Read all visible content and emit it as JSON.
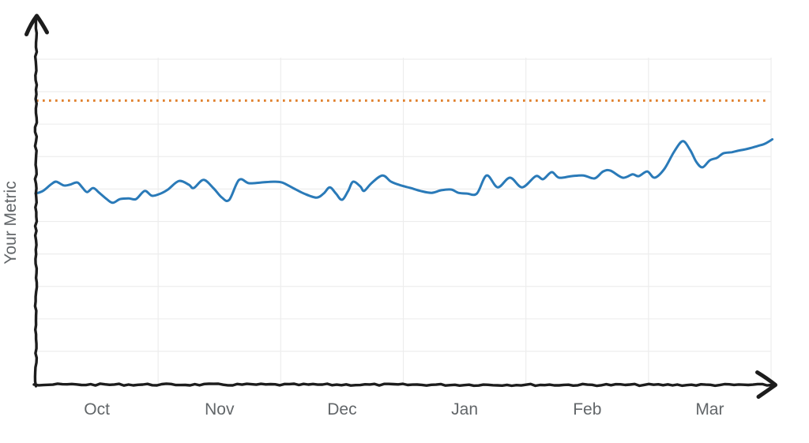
{
  "page": {
    "background": "#ffffff",
    "title": ""
  },
  "chart_data": {
    "type": "line",
    "title": "",
    "xlabel": "",
    "ylabel": "Your Metric",
    "x_tick_labels": [
      "Oct",
      "Nov",
      "Dec",
      "Jan",
      "Feb",
      "Mar"
    ],
    "x_unit": "month",
    "x_range_months": [
      0,
      6.06
    ],
    "ylim": [
      0,
      100
    ],
    "grid": true,
    "legend_position": "none",
    "axis_style": "hand-drawn black axes with arrowheads (top of y-axis, right of x-axis)",
    "colors": {
      "line": "#2a7ab8",
      "threshold": "#e0812e",
      "grid": "#ededed",
      "axis": "#1d1d1d",
      "labels": "#626669",
      "background": "#ffffff"
    },
    "threshold": {
      "name": "goal-line",
      "value": 77,
      "style": "dotted",
      "color": "#e0812e"
    },
    "series": [
      {
        "name": "Your Metric",
        "color": "#2a7ab8",
        "points": [
          [
            0.0,
            51.8
          ],
          [
            0.06,
            52.5
          ],
          [
            0.13,
            54.4
          ],
          [
            0.17,
            55.0
          ],
          [
            0.23,
            54.0
          ],
          [
            0.28,
            54.2
          ],
          [
            0.34,
            54.8
          ],
          [
            0.38,
            53.5
          ],
          [
            0.42,
            52.2
          ],
          [
            0.47,
            53.3
          ],
          [
            0.52,
            52.0
          ],
          [
            0.58,
            50.3
          ],
          [
            0.63,
            49.3
          ],
          [
            0.69,
            50.3
          ],
          [
            0.76,
            50.5
          ],
          [
            0.82,
            50.3
          ],
          [
            0.89,
            52.5
          ],
          [
            0.95,
            51.2
          ],
          [
            1.02,
            51.8
          ],
          [
            1.08,
            52.9
          ],
          [
            1.17,
            55.2
          ],
          [
            1.25,
            54.2
          ],
          [
            1.29,
            53.3
          ],
          [
            1.37,
            55.5
          ],
          [
            1.45,
            53.3
          ],
          [
            1.52,
            50.7
          ],
          [
            1.58,
            50.1
          ],
          [
            1.66,
            55.5
          ],
          [
            1.74,
            54.6
          ],
          [
            1.84,
            54.8
          ],
          [
            1.94,
            55.0
          ],
          [
            2.01,
            54.8
          ],
          [
            2.1,
            53.3
          ],
          [
            2.19,
            51.8
          ],
          [
            2.29,
            50.7
          ],
          [
            2.35,
            51.8
          ],
          [
            2.4,
            53.5
          ],
          [
            2.45,
            51.8
          ],
          [
            2.5,
            50.1
          ],
          [
            2.55,
            52.5
          ],
          [
            2.59,
            55.0
          ],
          [
            2.65,
            53.7
          ],
          [
            2.68,
            52.5
          ],
          [
            2.74,
            54.6
          ],
          [
            2.83,
            56.7
          ],
          [
            2.9,
            55.0
          ],
          [
            2.98,
            54.0
          ],
          [
            3.06,
            53.3
          ],
          [
            3.14,
            52.5
          ],
          [
            3.23,
            52.0
          ],
          [
            3.31,
            52.7
          ],
          [
            3.39,
            52.9
          ],
          [
            3.45,
            52.0
          ],
          [
            3.52,
            51.8
          ],
          [
            3.6,
            51.8
          ],
          [
            3.68,
            56.7
          ],
          [
            3.77,
            53.5
          ],
          [
            3.87,
            56.1
          ],
          [
            3.97,
            53.5
          ],
          [
            4.08,
            56.5
          ],
          [
            4.14,
            55.7
          ],
          [
            4.21,
            57.6
          ],
          [
            4.27,
            56.1
          ],
          [
            4.37,
            56.5
          ],
          [
            4.47,
            56.7
          ],
          [
            4.56,
            55.9
          ],
          [
            4.63,
            57.8
          ],
          [
            4.69,
            58.0
          ],
          [
            4.79,
            56.1
          ],
          [
            4.87,
            57.0
          ],
          [
            4.92,
            56.5
          ],
          [
            4.99,
            57.8
          ],
          [
            5.05,
            56.1
          ],
          [
            5.13,
            58.5
          ],
          [
            5.21,
            63.2
          ],
          [
            5.28,
            66.0
          ],
          [
            5.34,
            63.6
          ],
          [
            5.39,
            60.4
          ],
          [
            5.44,
            58.9
          ],
          [
            5.5,
            60.8
          ],
          [
            5.56,
            61.5
          ],
          [
            5.61,
            62.7
          ],
          [
            5.68,
            63.0
          ],
          [
            5.73,
            63.4
          ],
          [
            5.79,
            63.8
          ],
          [
            5.84,
            64.2
          ],
          [
            5.89,
            64.7
          ],
          [
            5.95,
            65.3
          ],
          [
            6.01,
            66.5
          ]
        ]
      }
    ]
  }
}
